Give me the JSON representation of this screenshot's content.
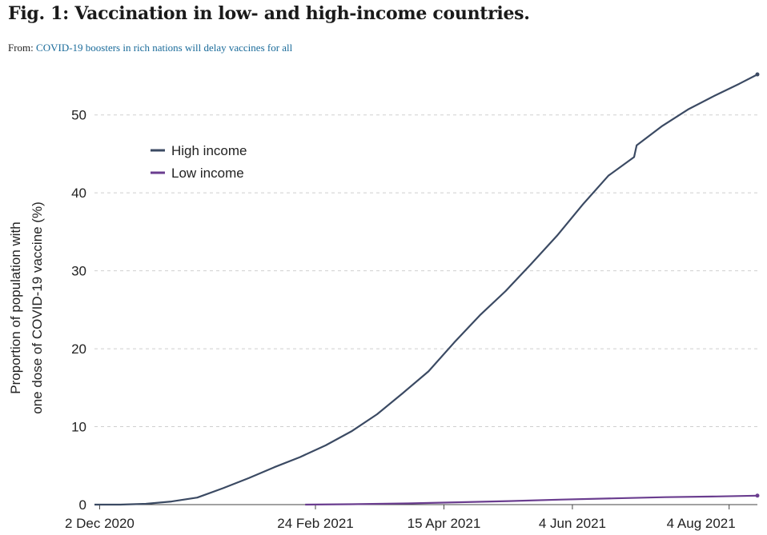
{
  "figure": {
    "title": "Fig. 1: Vaccination in low- and high-income countries.",
    "from_label": "From:",
    "from_link": "COVID-19 boosters in rich nations will delay vaccines for all"
  },
  "chart_data": {
    "type": "line",
    "ylabel_line1": "Proportion of population with",
    "ylabel_line2": "one dose of COVID-19 vaccine (%)",
    "xlabel": "",
    "ylim": [
      0,
      55
    ],
    "y_ticks": [
      0,
      10,
      20,
      30,
      40,
      50
    ],
    "x_range": [
      "2020-11-30",
      "2021-08-15"
    ],
    "x_ticks": [
      {
        "date": "2020-12-02",
        "label": "2 Dec 2020"
      },
      {
        "date": "2021-02-24",
        "label": "24 Feb 2021"
      },
      {
        "date": "2021-04-15",
        "label": "15 Apr 2021"
      },
      {
        "date": "2021-06-04",
        "label": "4 Jun 2021"
      },
      {
        "date": "2021-08-04",
        "label": "4 Aug 2021"
      }
    ],
    "grid": "horizontal dashed",
    "legend_position": "upper-left",
    "series": [
      {
        "name": "High income",
        "color": "#3b4a63",
        "points": [
          [
            "2020-11-30",
            0
          ],
          [
            "2020-12-10",
            0
          ],
          [
            "2020-12-20",
            0.1
          ],
          [
            "2020-12-30",
            0.4
          ],
          [
            "2021-01-09",
            0.9
          ],
          [
            "2021-01-19",
            2.1
          ],
          [
            "2021-01-29",
            3.4
          ],
          [
            "2021-02-08",
            4.8
          ],
          [
            "2021-02-18",
            6.1
          ],
          [
            "2021-02-28",
            7.6
          ],
          [
            "2021-03-10",
            9.4
          ],
          [
            "2021-03-20",
            11.6
          ],
          [
            "2021-03-30",
            14.3
          ],
          [
            "2021-04-09",
            17.1
          ],
          [
            "2021-04-19",
            20.8
          ],
          [
            "2021-04-29",
            24.3
          ],
          [
            "2021-05-09",
            27.4
          ],
          [
            "2021-05-19",
            30.9
          ],
          [
            "2021-05-29",
            34.5
          ],
          [
            "2021-06-08",
            38.5
          ],
          [
            "2021-06-18",
            42.2
          ],
          [
            "2021-06-28",
            44.6
          ],
          [
            "2021-06-29",
            46.1
          ],
          [
            "2021-07-09",
            48.6
          ],
          [
            "2021-07-19",
            50.7
          ],
          [
            "2021-07-29",
            52.4
          ],
          [
            "2021-08-08",
            54.0
          ],
          [
            "2021-08-15",
            55.2
          ]
        ]
      },
      {
        "name": "Low income",
        "color": "#6a3d8f",
        "points": [
          [
            "2021-02-20",
            0
          ],
          [
            "2021-03-10",
            0.05
          ],
          [
            "2021-04-01",
            0.15
          ],
          [
            "2021-04-20",
            0.3
          ],
          [
            "2021-05-10",
            0.45
          ],
          [
            "2021-05-31",
            0.65
          ],
          [
            "2021-06-20",
            0.8
          ],
          [
            "2021-07-10",
            0.95
          ],
          [
            "2021-07-30",
            1.05
          ],
          [
            "2021-08-15",
            1.15
          ]
        ]
      }
    ]
  }
}
